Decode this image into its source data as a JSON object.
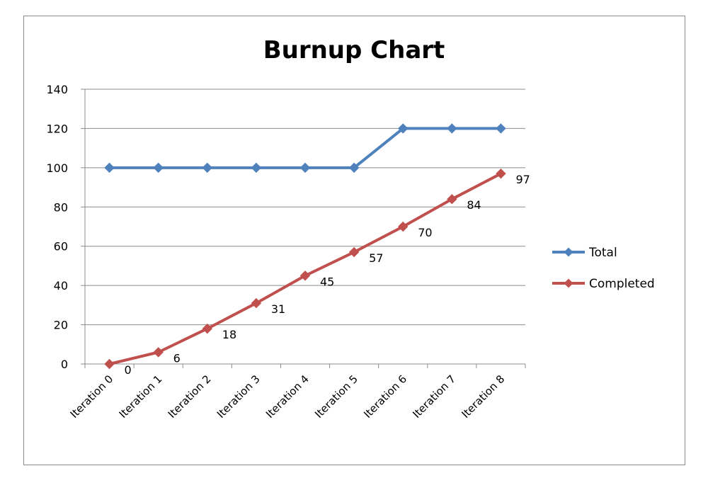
{
  "chart_data": {
    "type": "line",
    "title": "Burnup Chart",
    "categories": [
      "Iteration 0",
      "Iteration 1",
      "Iteration 2",
      "Iteration 3",
      "Iteration 4",
      "Iteration 5",
      "Iteration 6",
      "Iteration 7",
      "Iteration 8"
    ],
    "series": [
      {
        "name": "Total",
        "color": "#4f81bd",
        "values": [
          100,
          100,
          100,
          100,
          100,
          100,
          120,
          120,
          120
        ],
        "show_labels": false
      },
      {
        "name": "Completed",
        "color": "#c0504d",
        "values": [
          0,
          6,
          18,
          31,
          45,
          57,
          70,
          84,
          97
        ],
        "show_labels": true
      }
    ],
    "yticks": [
      0,
      20,
      40,
      60,
      80,
      100,
      120,
      140
    ],
    "ylim": [
      0,
      140
    ],
    "grid": true,
    "legend": "right",
    "marker": "diamond"
  }
}
